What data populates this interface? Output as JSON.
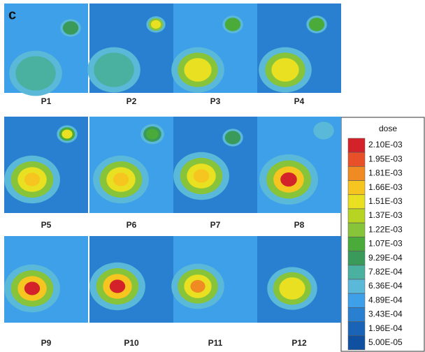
{
  "figure_label": "c",
  "panels": [
    {
      "label": "P1"
    },
    {
      "label": "P2"
    },
    {
      "label": "P3"
    },
    {
      "label": "P4"
    },
    {
      "label": "P5"
    },
    {
      "label": "P6"
    },
    {
      "label": "P7"
    },
    {
      "label": "P8"
    },
    {
      "label": "P9"
    },
    {
      "label": "P10"
    },
    {
      "label": "P11"
    },
    {
      "label": "P12"
    }
  ],
  "legend": {
    "title": "dose",
    "levels": [
      {
        "label": "2.10E-03",
        "color": "#d4222a"
      },
      {
        "label": "1.95E-03",
        "color": "#e8502a"
      },
      {
        "label": "1.81E-03",
        "color": "#f08a22"
      },
      {
        "label": "1.66E-03",
        "color": "#f7c520"
      },
      {
        "label": "1.51E-03",
        "color": "#e8e020"
      },
      {
        "label": "1.37E-03",
        "color": "#b8d422"
      },
      {
        "label": "1.22E-03",
        "color": "#88c43a"
      },
      {
        "label": "1.07E-03",
        "color": "#4aaa3a"
      },
      {
        "label": "9.29E-04",
        "color": "#3a9a5a"
      },
      {
        "label": "7.82E-04",
        "color": "#4ab0a0"
      },
      {
        "label": "6.36E-04",
        "color": "#5ab8d8"
      },
      {
        "label": "4.89E-04",
        "color": "#3fa0ea"
      },
      {
        "label": "3.43E-04",
        "color": "#2a80d0"
      },
      {
        "label": "1.96E-04",
        "color": "#1a64b8"
      },
      {
        "label": "5.00E-05",
        "color": "#1050a0"
      }
    ]
  }
}
